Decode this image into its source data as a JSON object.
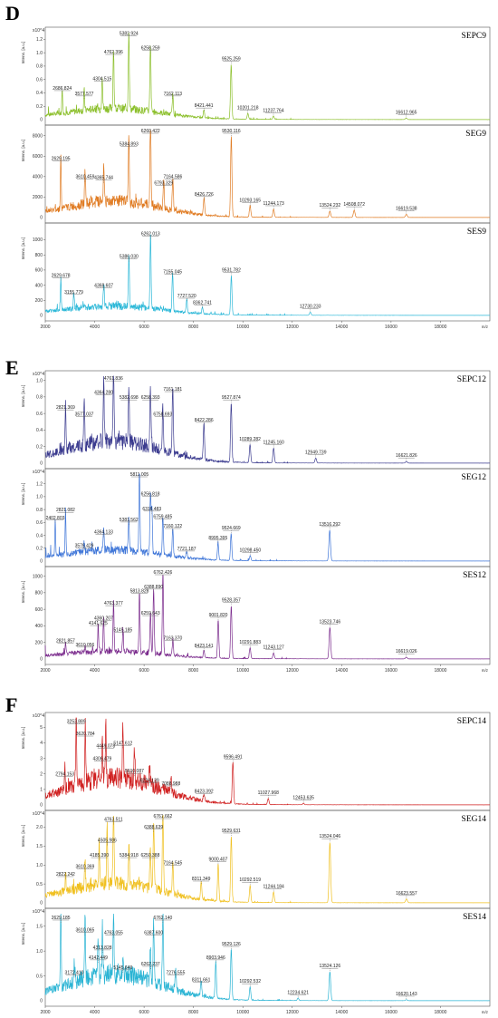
{
  "figure": {
    "x_ticks": [
      "2000",
      "4000",
      "6000",
      "8000",
      "10000",
      "12000",
      "14000",
      "16000",
      "18000"
    ],
    "x_unit": "m/z",
    "y_label": "Intens. [a.u.]"
  },
  "chart_data": [
    {
      "panel": "D",
      "type": "line",
      "xlim": [
        2000,
        20000
      ],
      "subplots": [
        {
          "label": "SEPC9",
          "color": "#8bbf2a",
          "multiplier": "x10^4",
          "ylim": [
            0,
            1.3
          ],
          "y_ticks": [
            "0.2",
            "0.4",
            "0.6",
            "0.8",
            "1.0",
            "1.2"
          ],
          "peaks": [
            [
              2686.824,
              0.38
            ],
            [
              3577.577,
              0.3
            ],
            [
              4304.515,
              0.52
            ],
            [
              4762.396,
              0.92
            ],
            [
              5382.924,
              1.2
            ],
            [
              6258.259,
              0.98
            ],
            [
              7162.113,
              0.3
            ],
            [
              8421.441,
              0.12
            ],
            [
              9525.259,
              0.82
            ],
            [
              10201.218,
              0.09
            ],
            [
              11237.764,
              0.05
            ],
            [
              16612.965,
              0.02
            ]
          ]
        },
        {
          "label": "SEG9",
          "color": "#e07b22",
          "multiplier": "",
          "ylim": [
            0,
            8500
          ],
          "y_ticks": [
            "2000",
            "4000",
            "6000",
            "8000"
          ],
          "peaks": [
            [
              2629.195,
              5200
            ],
            [
              3610.459,
              3400
            ],
            [
              4365.744,
              3300
            ],
            [
              5384.893,
              6600
            ],
            [
              6260.422,
              8200
            ],
            [
              6793.329,
              2800
            ],
            [
              7164.586,
              3400
            ],
            [
              8426.726,
              1700
            ],
            [
              9530.116,
              7900
            ],
            [
              10293.165,
              1100
            ],
            [
              11244.173,
              800
            ],
            [
              13524.232,
              600
            ],
            [
              14508.072,
              700
            ],
            [
              16619.538,
              300
            ]
          ]
        },
        {
          "label": "SES9",
          "color": "#2cb8d8",
          "multiplier": "",
          "ylim": [
            0,
            1150
          ],
          "y_ticks": [
            "200",
            "400",
            "600",
            "800",
            "1000"
          ],
          "peaks": [
            [
              2629.678,
              450
            ],
            [
              3155.779,
              230
            ],
            [
              4368.607,
              320
            ],
            [
              5386.03,
              700
            ],
            [
              6262.013,
              1000
            ],
            [
              7155.045,
              500
            ],
            [
              7727.52,
              180
            ],
            [
              8362.741,
              90
            ],
            [
              9531.782,
              520
            ],
            [
              12730.233,
              40
            ]
          ]
        }
      ]
    },
    {
      "panel": "E",
      "type": "line",
      "xlim": [
        2000,
        20000
      ],
      "subplots": [
        {
          "label": "SEPC12",
          "color": "#3b3b8f",
          "multiplier": "x10^4",
          "ylim": [
            0,
            1.05
          ],
          "y_ticks": [
            "0.2",
            "0.4",
            "0.6",
            "0.8",
            "1.0"
          ],
          "peaks": [
            [
              2821.369,
              0.6
            ],
            [
              3577.037,
              0.52
            ],
            [
              4364.28,
              0.78
            ],
            [
              4761.836,
              0.95
            ],
            [
              5382.698,
              0.72
            ],
            [
              6258.393,
              0.72
            ],
            [
              6758.693,
              0.52
            ],
            [
              7161.181,
              0.82
            ],
            [
              8422.286,
              0.45
            ],
            [
              9527.874,
              0.72
            ],
            [
              10289.282,
              0.22
            ],
            [
              11245.16,
              0.18
            ],
            [
              12949.739,
              0.06
            ],
            [
              16621.826,
              0.02
            ]
          ]
        },
        {
          "label": "SEG12",
          "color": "#3f76d8",
          "multiplier": "x10^4",
          "ylim": [
            0,
            1.35
          ],
          "y_ticks": [
            "0.2",
            "0.4",
            "0.6",
            "0.8",
            "1.0",
            "1.2"
          ],
          "peaks": [
            [
              2402.803,
              0.58
            ],
            [
              2821.082,
              0.7
            ],
            [
              3576.429,
              0.15
            ],
            [
              4364.133,
              0.36
            ],
            [
              5381.562,
              0.55
            ],
            [
              5811.005,
              1.3
            ],
            [
              6256.818,
              0.95
            ],
            [
              6316.483,
              0.72
            ],
            [
              6759.485,
              0.6
            ],
            [
              7160.122,
              0.45
            ],
            [
              7721.187,
              0.1
            ],
            [
              8995.395,
              0.27
            ],
            [
              9524.669,
              0.42
            ],
            [
              10298.45,
              0.08
            ],
            [
              13516.292,
              0.48
            ]
          ]
        },
        {
          "label": "SES12",
          "color": "#7a2a8c",
          "multiplier": "",
          "ylim": [
            0,
            1050
          ],
          "y_ticks": [
            "200",
            "400",
            "600",
            "800",
            "1000"
          ],
          "peaks": [
            [
              2821.857,
              150
            ],
            [
              3610.056,
              100
            ],
            [
              4141.625,
              360
            ],
            [
              4360.207,
              420
            ],
            [
              4763.377,
              600
            ],
            [
              5145.185,
              280
            ],
            [
              5813.828,
              750
            ],
            [
              6259.643,
              480
            ],
            [
              6388.89,
              800
            ],
            [
              6762.426,
              1000
            ],
            [
              7163.37,
              180
            ],
            [
              8423.141,
              90
            ],
            [
              9001.82,
              460
            ],
            [
              9528.357,
              640
            ],
            [
              10291.883,
              130
            ],
            [
              11243.127,
              70
            ],
            [
              13523.746,
              380
            ],
            [
              16619.026,
              20
            ]
          ]
        }
      ]
    },
    {
      "panel": "F",
      "type": "line",
      "xlim": [
        2000,
        20000
      ],
      "subplots": [
        {
          "label": "SEPC14",
          "color": "#d02020",
          "multiplier": "x10^4",
          "ylim": [
            0,
            5.6
          ],
          "y_ticks": [
            "1",
            "2",
            "3",
            "4",
            "5"
          ],
          "peaks": [
            [
              2794.153,
              1.6
            ],
            [
              3253.889,
              5.0
            ],
            [
              3620.784,
              4.2
            ],
            [
              4306.479,
              2.6
            ],
            [
              4449.078,
              3.4
            ],
            [
              5147.612,
              3.6
            ],
            [
              5610.087,
              1.8
            ],
            [
              6224.139,
              1.2
            ],
            [
              7088.988,
              1.0
            ],
            [
              8423.392,
              0.5
            ],
            [
              9596.491,
              2.7
            ],
            [
              11027.968,
              0.4
            ],
            [
              12453.635,
              0.1
            ]
          ]
        },
        {
          "label": "SEG14",
          "color": "#f0c020",
          "multiplier": "x10^4",
          "ylim": [
            0,
            2.3
          ],
          "y_ticks": [
            "0.5",
            "1.0",
            "1.5",
            "2.0"
          ],
          "peaks": [
            [
              2822.242,
              0.6
            ],
            [
              3610.369,
              0.8
            ],
            [
              4185.39,
              1.1
            ],
            [
              4505.986,
              1.5
            ],
            [
              4763.511,
              2.05
            ],
            [
              5384.918,
              1.1
            ],
            [
              6250.388,
              1.1
            ],
            [
              6388.639,
              1.85
            ],
            [
              6761.662,
              2.15
            ],
            [
              7164.545,
              0.9
            ],
            [
              8311.349,
              0.48
            ],
            [
              9000.407,
              1.0
            ],
            [
              9529.631,
              1.75
            ],
            [
              10292.519,
              0.45
            ],
            [
              11244.184,
              0.28
            ],
            [
              13524.046,
              1.6
            ],
            [
              16623.557,
              0.1
            ]
          ]
        },
        {
          "label": "SES14",
          "color": "#2ab4d4",
          "multiplier": "x10^4",
          "ylim": [
            0,
            1.75
          ],
          "y_ticks": [
            "0.5",
            "1.0",
            "1.5"
          ],
          "peaks": [
            [
              2629.185,
              1.55
            ],
            [
              3172.41,
              0.45
            ],
            [
              3610.065,
              1.3
            ],
            [
              4142.449,
              0.75
            ],
            [
              4313.828,
              0.95
            ],
            [
              4763.055,
              1.25
            ],
            [
              5145.649,
              0.55
            ],
            [
              6262.237,
              0.62
            ],
            [
              6387.6,
              1.25
            ],
            [
              6762.14,
              1.55
            ],
            [
              7276.555,
              0.45
            ],
            [
              8311.661,
              0.3
            ],
            [
              8903.946,
              0.75
            ],
            [
              9529.126,
              1.02
            ],
            [
              10292.532,
              0.27
            ],
            [
              12234.621,
              0.05
            ],
            [
              13524.126,
              0.58
            ],
            [
              16620.143,
              0.02
            ]
          ]
        }
      ]
    }
  ]
}
